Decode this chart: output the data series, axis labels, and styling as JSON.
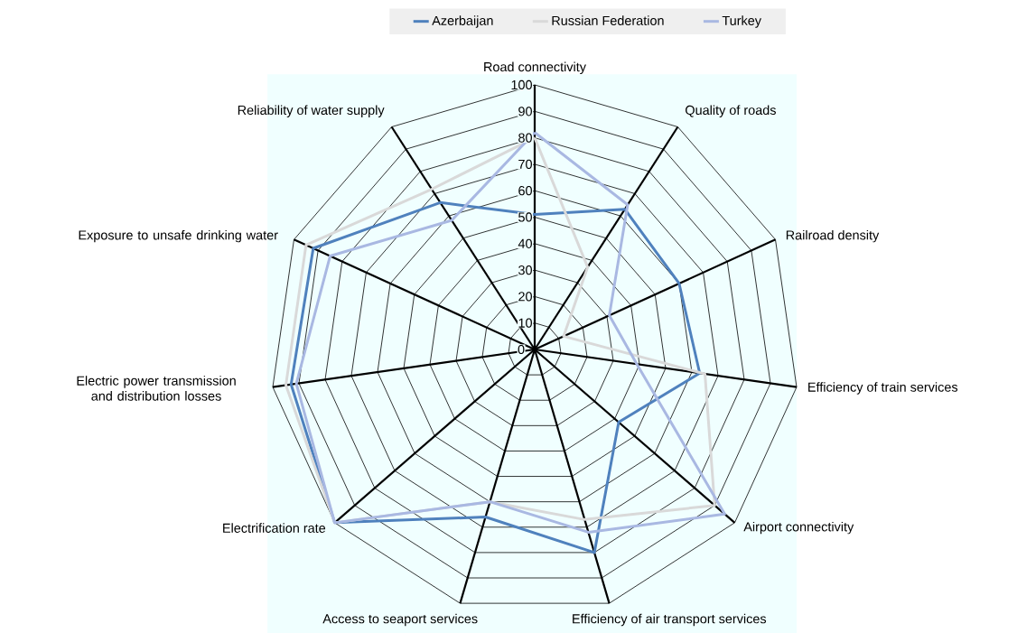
{
  "chart_data": {
    "type": "radar",
    "categories": [
      "Road connectivity",
      "Quality of roads",
      "Railroad density",
      "Efficiency of train services",
      "Airport connectivity",
      "Efficiency of air transport services",
      "Access to seaport services",
      "Electrification rate",
      "Electric power transmission and distribution losses",
      "Exposure to unsafe drinking water",
      "Reliability of water supply"
    ],
    "series": [
      {
        "name": "Azerbaijan",
        "color": "#4f81bd",
        "values": [
          51,
          63,
          60,
          63,
          42,
          80,
          66,
          100,
          93,
          92,
          66
        ]
      },
      {
        "name": "Russian Federation",
        "color": "#d9d9d9",
        "values": [
          80,
          37,
          12,
          65,
          90,
          67,
          60,
          100,
          95,
          95,
          72
        ]
      },
      {
        "name": "Turkey",
        "color": "#a9b8e2",
        "values": [
          82,
          65,
          31,
          39,
          95,
          72,
          60,
          100,
          91,
          85,
          58
        ]
      }
    ],
    "ylim": [
      0,
      100
    ],
    "yticks": [
      0,
      10,
      20,
      30,
      40,
      50,
      60,
      70,
      80,
      90,
      100
    ],
    "grid": true,
    "legend": "top"
  }
}
